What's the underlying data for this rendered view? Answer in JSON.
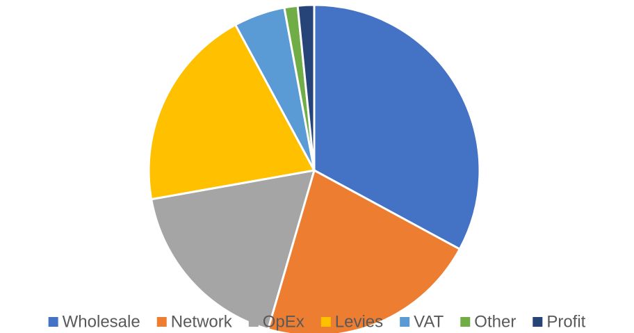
{
  "chart_data": {
    "type": "pie",
    "categories": [
      "Wholesale",
      "Network",
      "OpEx",
      "Levies",
      "VAT",
      "Other",
      "Profit"
    ],
    "values": [
      32.9,
      21.6,
      17.7,
      19.9,
      5.0,
      1.3,
      1.6
    ],
    "colors": [
      "#4472c4",
      "#ed7d31",
      "#a5a5a5",
      "#ffc000",
      "#5b9bd5",
      "#70ad47",
      "#264478"
    ],
    "legend": "bottom"
  }
}
